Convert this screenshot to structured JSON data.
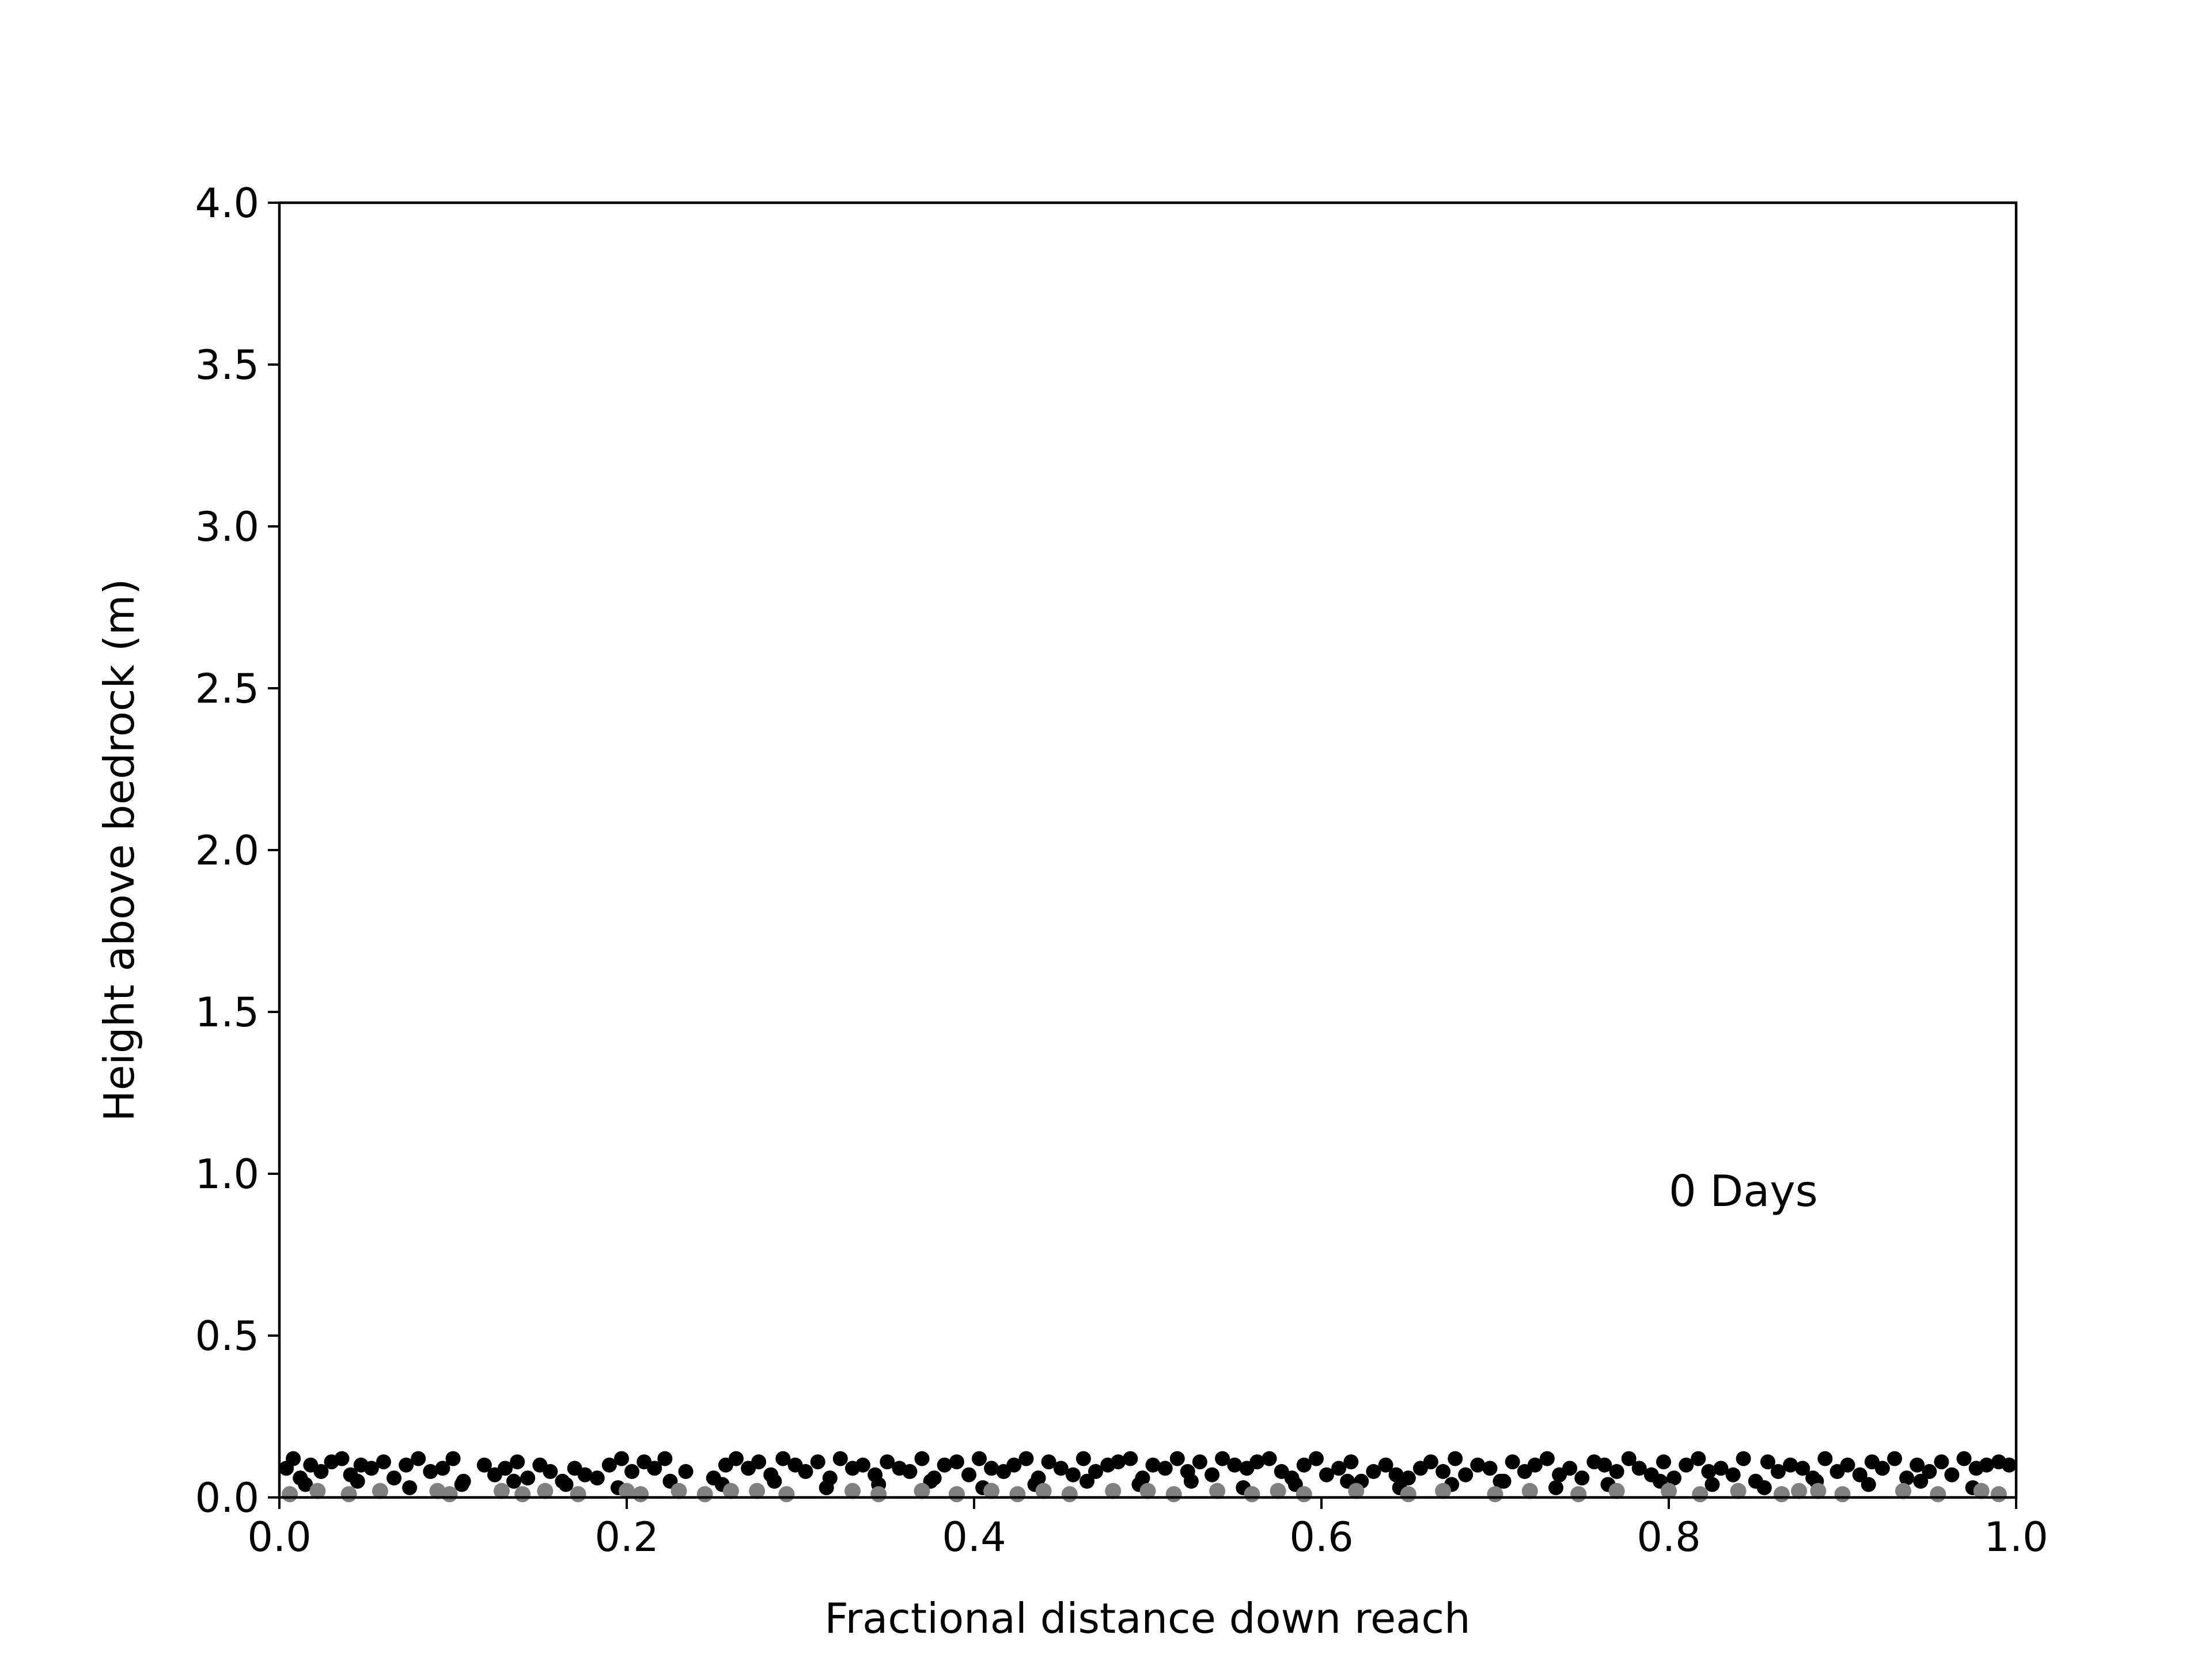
{
  "chart_data": {
    "type": "scatter",
    "title": "",
    "xlabel": "Fractional distance down reach",
    "ylabel": "Height above bedrock (m)",
    "xlim": [
      0.0,
      1.0
    ],
    "ylim": [
      0.0,
      4.0
    ],
    "x_ticks": [
      {
        "value": 0.0,
        "label": "0.0"
      },
      {
        "value": 0.2,
        "label": "0.2"
      },
      {
        "value": 0.4,
        "label": "0.4"
      },
      {
        "value": 0.6,
        "label": "0.6"
      },
      {
        "value": 0.8,
        "label": "0.8"
      },
      {
        "value": 1.0,
        "label": "1.0"
      }
    ],
    "y_ticks": [
      {
        "value": 0.0,
        "label": "0.0"
      },
      {
        "value": 0.5,
        "label": "0.5"
      },
      {
        "value": 1.0,
        "label": "1.0"
      },
      {
        "value": 1.5,
        "label": "1.5"
      },
      {
        "value": 2.0,
        "label": "2.0"
      },
      {
        "value": 2.5,
        "label": "2.5"
      },
      {
        "value": 3.0,
        "label": "3.0"
      },
      {
        "value": 3.5,
        "label": "3.5"
      },
      {
        "value": 4.0,
        "label": "4.0"
      }
    ],
    "grid": false,
    "legend": "none",
    "annotations": [
      {
        "text": "0 Days",
        "x": 0.8,
        "y": 0.95
      }
    ],
    "series": [
      {
        "color": "#000000",
        "x": [
          0.004,
          0.008,
          0.012,
          0.018,
          0.024,
          0.03,
          0.036,
          0.041,
          0.047,
          0.053,
          0.06,
          0.066,
          0.073,
          0.08,
          0.087,
          0.094,
          0.1,
          0.106,
          0.118,
          0.124,
          0.13,
          0.137,
          0.143,
          0.15,
          0.156,
          0.163,
          0.17,
          0.176,
          0.183,
          0.19,
          0.197,
          0.203,
          0.21,
          0.216,
          0.222,
          0.234,
          0.25,
          0.257,
          0.263,
          0.27,
          0.276,
          0.283,
          0.29,
          0.297,
          0.303,
          0.31,
          0.317,
          0.323,
          0.33,
          0.336,
          0.343,
          0.35,
          0.357,
          0.363,
          0.37,
          0.377,
          0.383,
          0.39,
          0.397,
          0.403,
          0.41,
          0.417,
          0.423,
          0.43,
          0.437,
          0.443,
          0.45,
          0.457,
          0.463,
          0.47,
          0.477,
          0.483,
          0.49,
          0.497,
          0.503,
          0.51,
          0.517,
          0.523,
          0.53,
          0.537,
          0.543,
          0.55,
          0.557,
          0.563,
          0.57,
          0.577,
          0.583,
          0.59,
          0.597,
          0.603,
          0.61,
          0.617,
          0.623,
          0.63,
          0.637,
          0.643,
          0.65,
          0.657,
          0.663,
          0.67,
          0.677,
          0.683,
          0.69,
          0.697,
          0.703,
          0.71,
          0.717,
          0.723,
          0.73,
          0.737,
          0.743,
          0.75,
          0.757,
          0.763,
          0.77,
          0.777,
          0.783,
          0.79,
          0.797,
          0.803,
          0.81,
          0.817,
          0.823,
          0.83,
          0.837,
          0.843,
          0.85,
          0.857,
          0.863,
          0.87,
          0.877,
          0.883,
          0.89,
          0.897,
          0.903,
          0.91,
          0.917,
          0.923,
          0.93,
          0.937,
          0.943,
          0.95,
          0.957,
          0.963,
          0.97,
          0.977,
          0.983,
          0.99,
          0.996,
          0.015,
          0.045,
          0.075,
          0.105,
          0.135,
          0.165,
          0.195,
          0.225,
          0.255,
          0.285,
          0.315,
          0.345,
          0.375,
          0.405,
          0.435,
          0.465,
          0.495,
          0.525,
          0.555,
          0.585,
          0.615,
          0.645,
          0.675,
          0.705,
          0.735,
          0.765,
          0.795,
          0.825,
          0.855,
          0.885,
          0.915,
          0.945,
          0.975
        ],
        "y": [
          0.09,
          0.12,
          0.06,
          0.1,
          0.08,
          0.11,
          0.12,
          0.07,
          0.1,
          0.09,
          0.11,
          0.06,
          0.1,
          0.12,
          0.08,
          0.09,
          0.12,
          0.05,
          0.1,
          0.07,
          0.09,
          0.11,
          0.06,
          0.1,
          0.08,
          0.05,
          0.09,
          0.07,
          0.06,
          0.1,
          0.12,
          0.08,
          0.11,
          0.09,
          0.12,
          0.08,
          0.06,
          0.1,
          0.12,
          0.09,
          0.11,
          0.07,
          0.12,
          0.1,
          0.08,
          0.11,
          0.06,
          0.12,
          0.09,
          0.1,
          0.07,
          0.11,
          0.09,
          0.08,
          0.12,
          0.06,
          0.1,
          0.11,
          0.07,
          0.12,
          0.09,
          0.08,
          0.1,
          0.12,
          0.06,
          0.11,
          0.09,
          0.07,
          0.12,
          0.08,
          0.1,
          0.11,
          0.12,
          0.06,
          0.1,
          0.09,
          0.12,
          0.08,
          0.11,
          0.07,
          0.12,
          0.1,
          0.09,
          0.11,
          0.12,
          0.08,
          0.06,
          0.1,
          0.12,
          0.07,
          0.09,
          0.11,
          0.05,
          0.08,
          0.1,
          0.07,
          0.06,
          0.09,
          0.11,
          0.08,
          0.12,
          0.07,
          0.1,
          0.09,
          0.05,
          0.11,
          0.08,
          0.1,
          0.12,
          0.07,
          0.09,
          0.06,
          0.11,
          0.1,
          0.08,
          0.12,
          0.09,
          0.07,
          0.11,
          0.06,
          0.1,
          0.12,
          0.08,
          0.09,
          0.07,
          0.12,
          0.05,
          0.11,
          0.08,
          0.1,
          0.09,
          0.06,
          0.12,
          0.08,
          0.1,
          0.07,
          0.11,
          0.09,
          0.12,
          0.06,
          0.1,
          0.08,
          0.11,
          0.07,
          0.12,
          0.09,
          0.1,
          0.11,
          0.1,
          0.04,
          0.05,
          0.03,
          0.04,
          0.05,
          0.04,
          0.03,
          0.05,
          0.04,
          0.05,
          0.03,
          0.04,
          0.05,
          0.03,
          0.04,
          0.05,
          0.04,
          0.05,
          0.03,
          0.04,
          0.05,
          0.03,
          0.04,
          0.05,
          0.03,
          0.04,
          0.05,
          0.04,
          0.03,
          0.05,
          0.04,
          0.05,
          0.03
        ]
      },
      {
        "color": "#808080",
        "x": [
          0.006,
          0.022,
          0.04,
          0.058,
          0.091,
          0.098,
          0.128,
          0.14,
          0.153,
          0.172,
          0.2,
          0.208,
          0.23,
          0.245,
          0.26,
          0.275,
          0.292,
          0.33,
          0.345,
          0.37,
          0.39,
          0.41,
          0.425,
          0.44,
          0.455,
          0.48,
          0.5,
          0.515,
          0.54,
          0.56,
          0.575,
          0.59,
          0.62,
          0.65,
          0.67,
          0.7,
          0.72,
          0.748,
          0.77,
          0.8,
          0.818,
          0.84,
          0.865,
          0.875,
          0.886,
          0.9,
          0.935,
          0.955,
          0.98,
          0.99
        ],
        "y": [
          0.01,
          0.02,
          0.01,
          0.02,
          0.02,
          0.01,
          0.02,
          0.01,
          0.02,
          0.01,
          0.02,
          0.01,
          0.02,
          0.01,
          0.02,
          0.02,
          0.01,
          0.02,
          0.01,
          0.02,
          0.01,
          0.02,
          0.01,
          0.02,
          0.01,
          0.02,
          0.02,
          0.01,
          0.02,
          0.01,
          0.02,
          0.01,
          0.02,
          0.01,
          0.02,
          0.01,
          0.02,
          0.01,
          0.02,
          0.02,
          0.01,
          0.02,
          0.01,
          0.02,
          0.02,
          0.01,
          0.02,
          0.01,
          0.02,
          0.01
        ]
      }
    ]
  }
}
